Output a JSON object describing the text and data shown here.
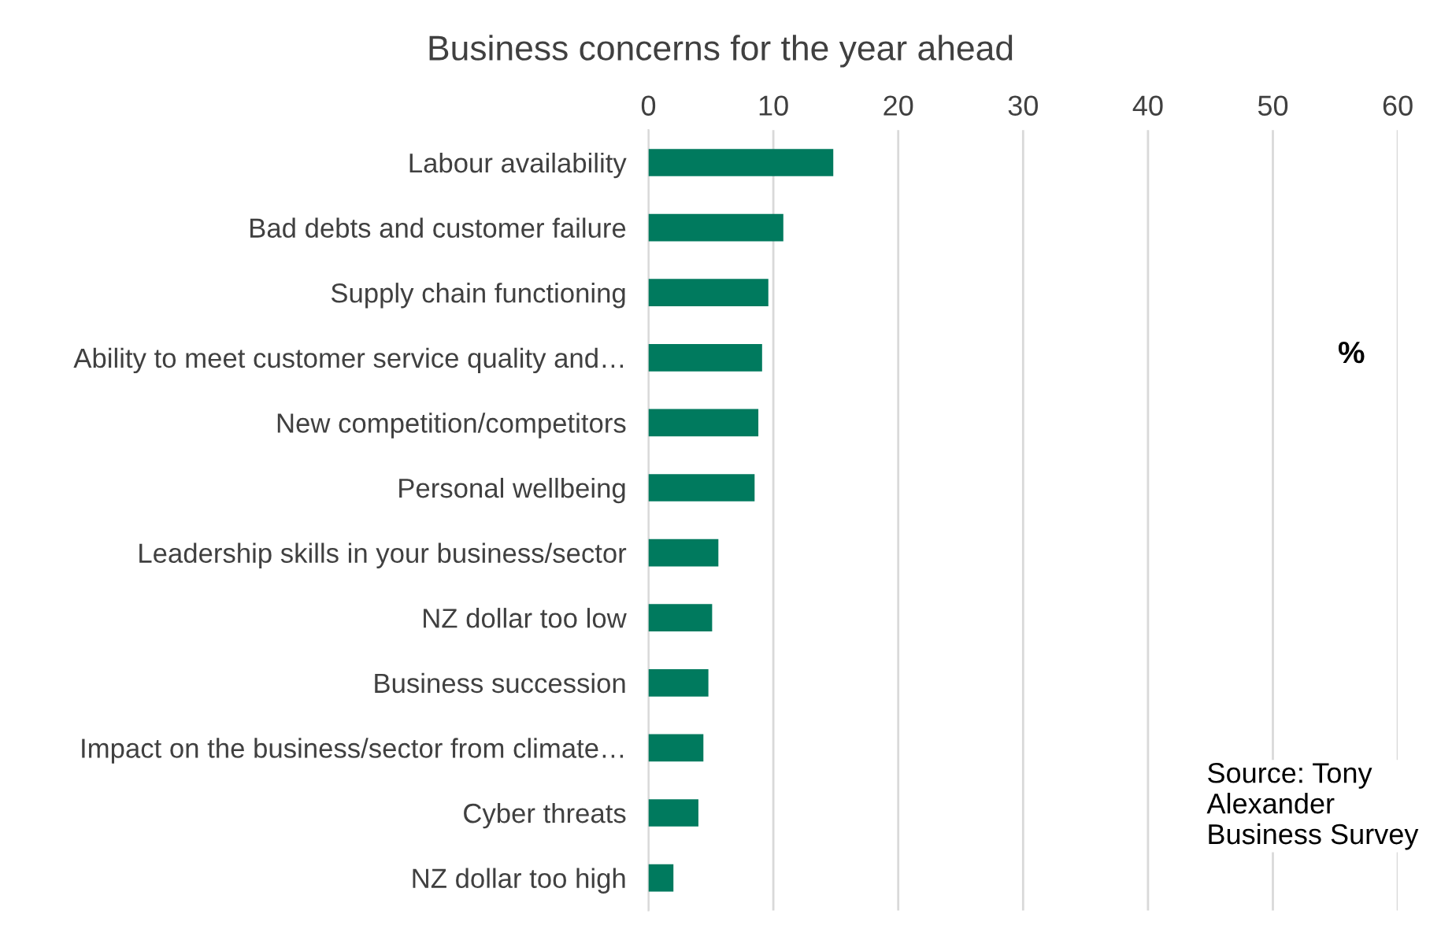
{
  "chart_data": {
    "type": "bar",
    "orientation": "horizontal",
    "title": "Business concerns for the year ahead",
    "categories": [
      "Labour availability",
      "Bad debts and customer failure",
      "Supply chain functioning",
      "Ability to meet customer service quality and…",
      "New competition/competitors",
      "Personal wellbeing",
      "Leadership skills in your business/sector",
      "NZ dollar too low",
      "Business succession",
      "Impact on the business/sector from climate…",
      "Cyber threats",
      "NZ dollar too high"
    ],
    "values": [
      14.8,
      10.8,
      9.6,
      9.1,
      8.8,
      8.5,
      5.6,
      5.1,
      4.8,
      4.4,
      4.0,
      2.0
    ],
    "color": "#007a5e",
    "xlim": [
      0,
      60
    ],
    "xticks": [
      0,
      10,
      20,
      30,
      40,
      50,
      60
    ],
    "grid": "x",
    "annotations": [
      "%",
      "Source: Tony Alexander Business Survey"
    ]
  }
}
